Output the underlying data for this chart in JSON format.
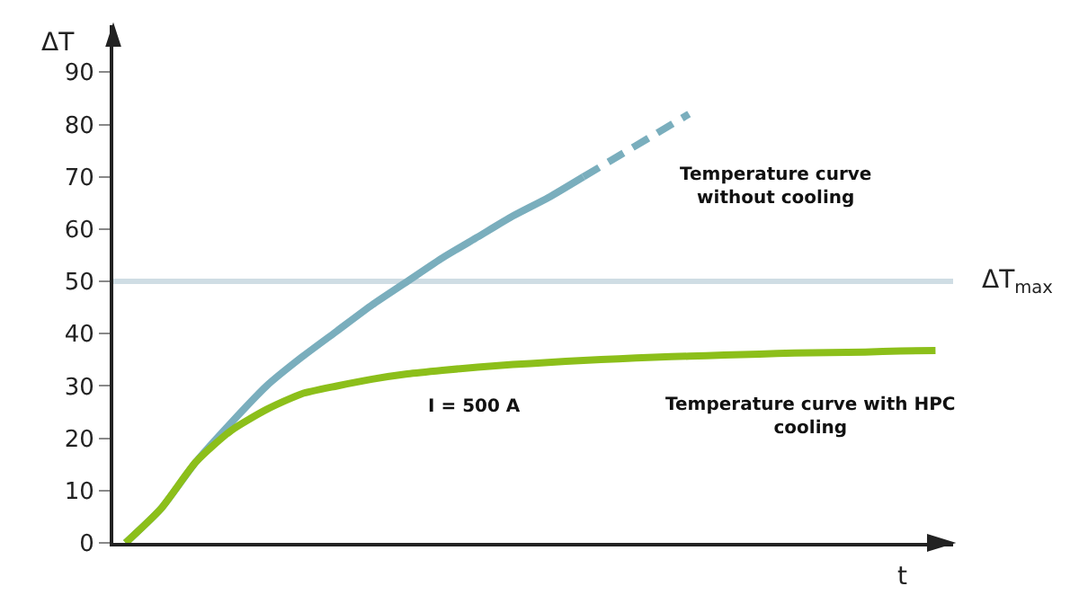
{
  "chart_data": {
    "type": "line",
    "xlabel": "t",
    "ylabel": "ΔT",
    "categories": [
      null,
      null,
      null,
      null,
      null,
      null,
      null,
      null,
      null,
      null,
      null,
      null,
      null,
      null,
      null,
      null,
      null,
      null,
      null,
      null,
      null,
      null,
      null,
      null
    ],
    "series": [
      {
        "color": "#7aaebd",
        "line_style": "solid",
        "values": [
          0,
          6.5,
          15.5,
          23,
          30,
          35.5,
          40.5,
          45.5,
          50,
          54.5,
          58.5,
          62.5,
          66,
          70,
          null,
          null,
          null,
          null,
          null,
          null,
          null,
          null,
          null,
          null
        ]
      },
      {
        "color": "#7aaebd",
        "line_style": "dashed",
        "values": [
          null,
          null,
          null,
          null,
          null,
          null,
          null,
          null,
          null,
          null,
          null,
          null,
          null,
          70,
          74,
          78,
          82,
          null,
          null,
          null,
          null,
          null,
          null,
          null
        ]
      },
      {
        "color": "#8cbf1a",
        "line_style": "solid",
        "values": [
          0,
          6.5,
          15.5,
          21.5,
          25.5,
          28.5,
          30,
          31.3,
          32.3,
          33,
          33.6,
          34.1,
          34.5,
          34.9,
          35.2,
          35.5,
          35.7,
          35.9,
          36.1,
          36.3,
          36.4,
          36.5,
          36.7,
          36.8
        ]
      }
    ],
    "ref_lines": [
      {
        "axis": "y",
        "value": 50,
        "label": "ΔT$_{max}$",
        "color": "#cfdde4"
      }
    ],
    "annotations": [
      "Temperature curve\nwithout cooling",
      "I = 500 A",
      "Temperature curve with HPC\ncooling"
    ],
    "ylim": [
      0,
      99
    ],
    "yticks": [
      0,
      10,
      20,
      30,
      40,
      50,
      60,
      70,
      80,
      90
    ],
    "tick_labels": "y",
    "grid": false,
    "legend": false,
    "marker": "none"
  }
}
